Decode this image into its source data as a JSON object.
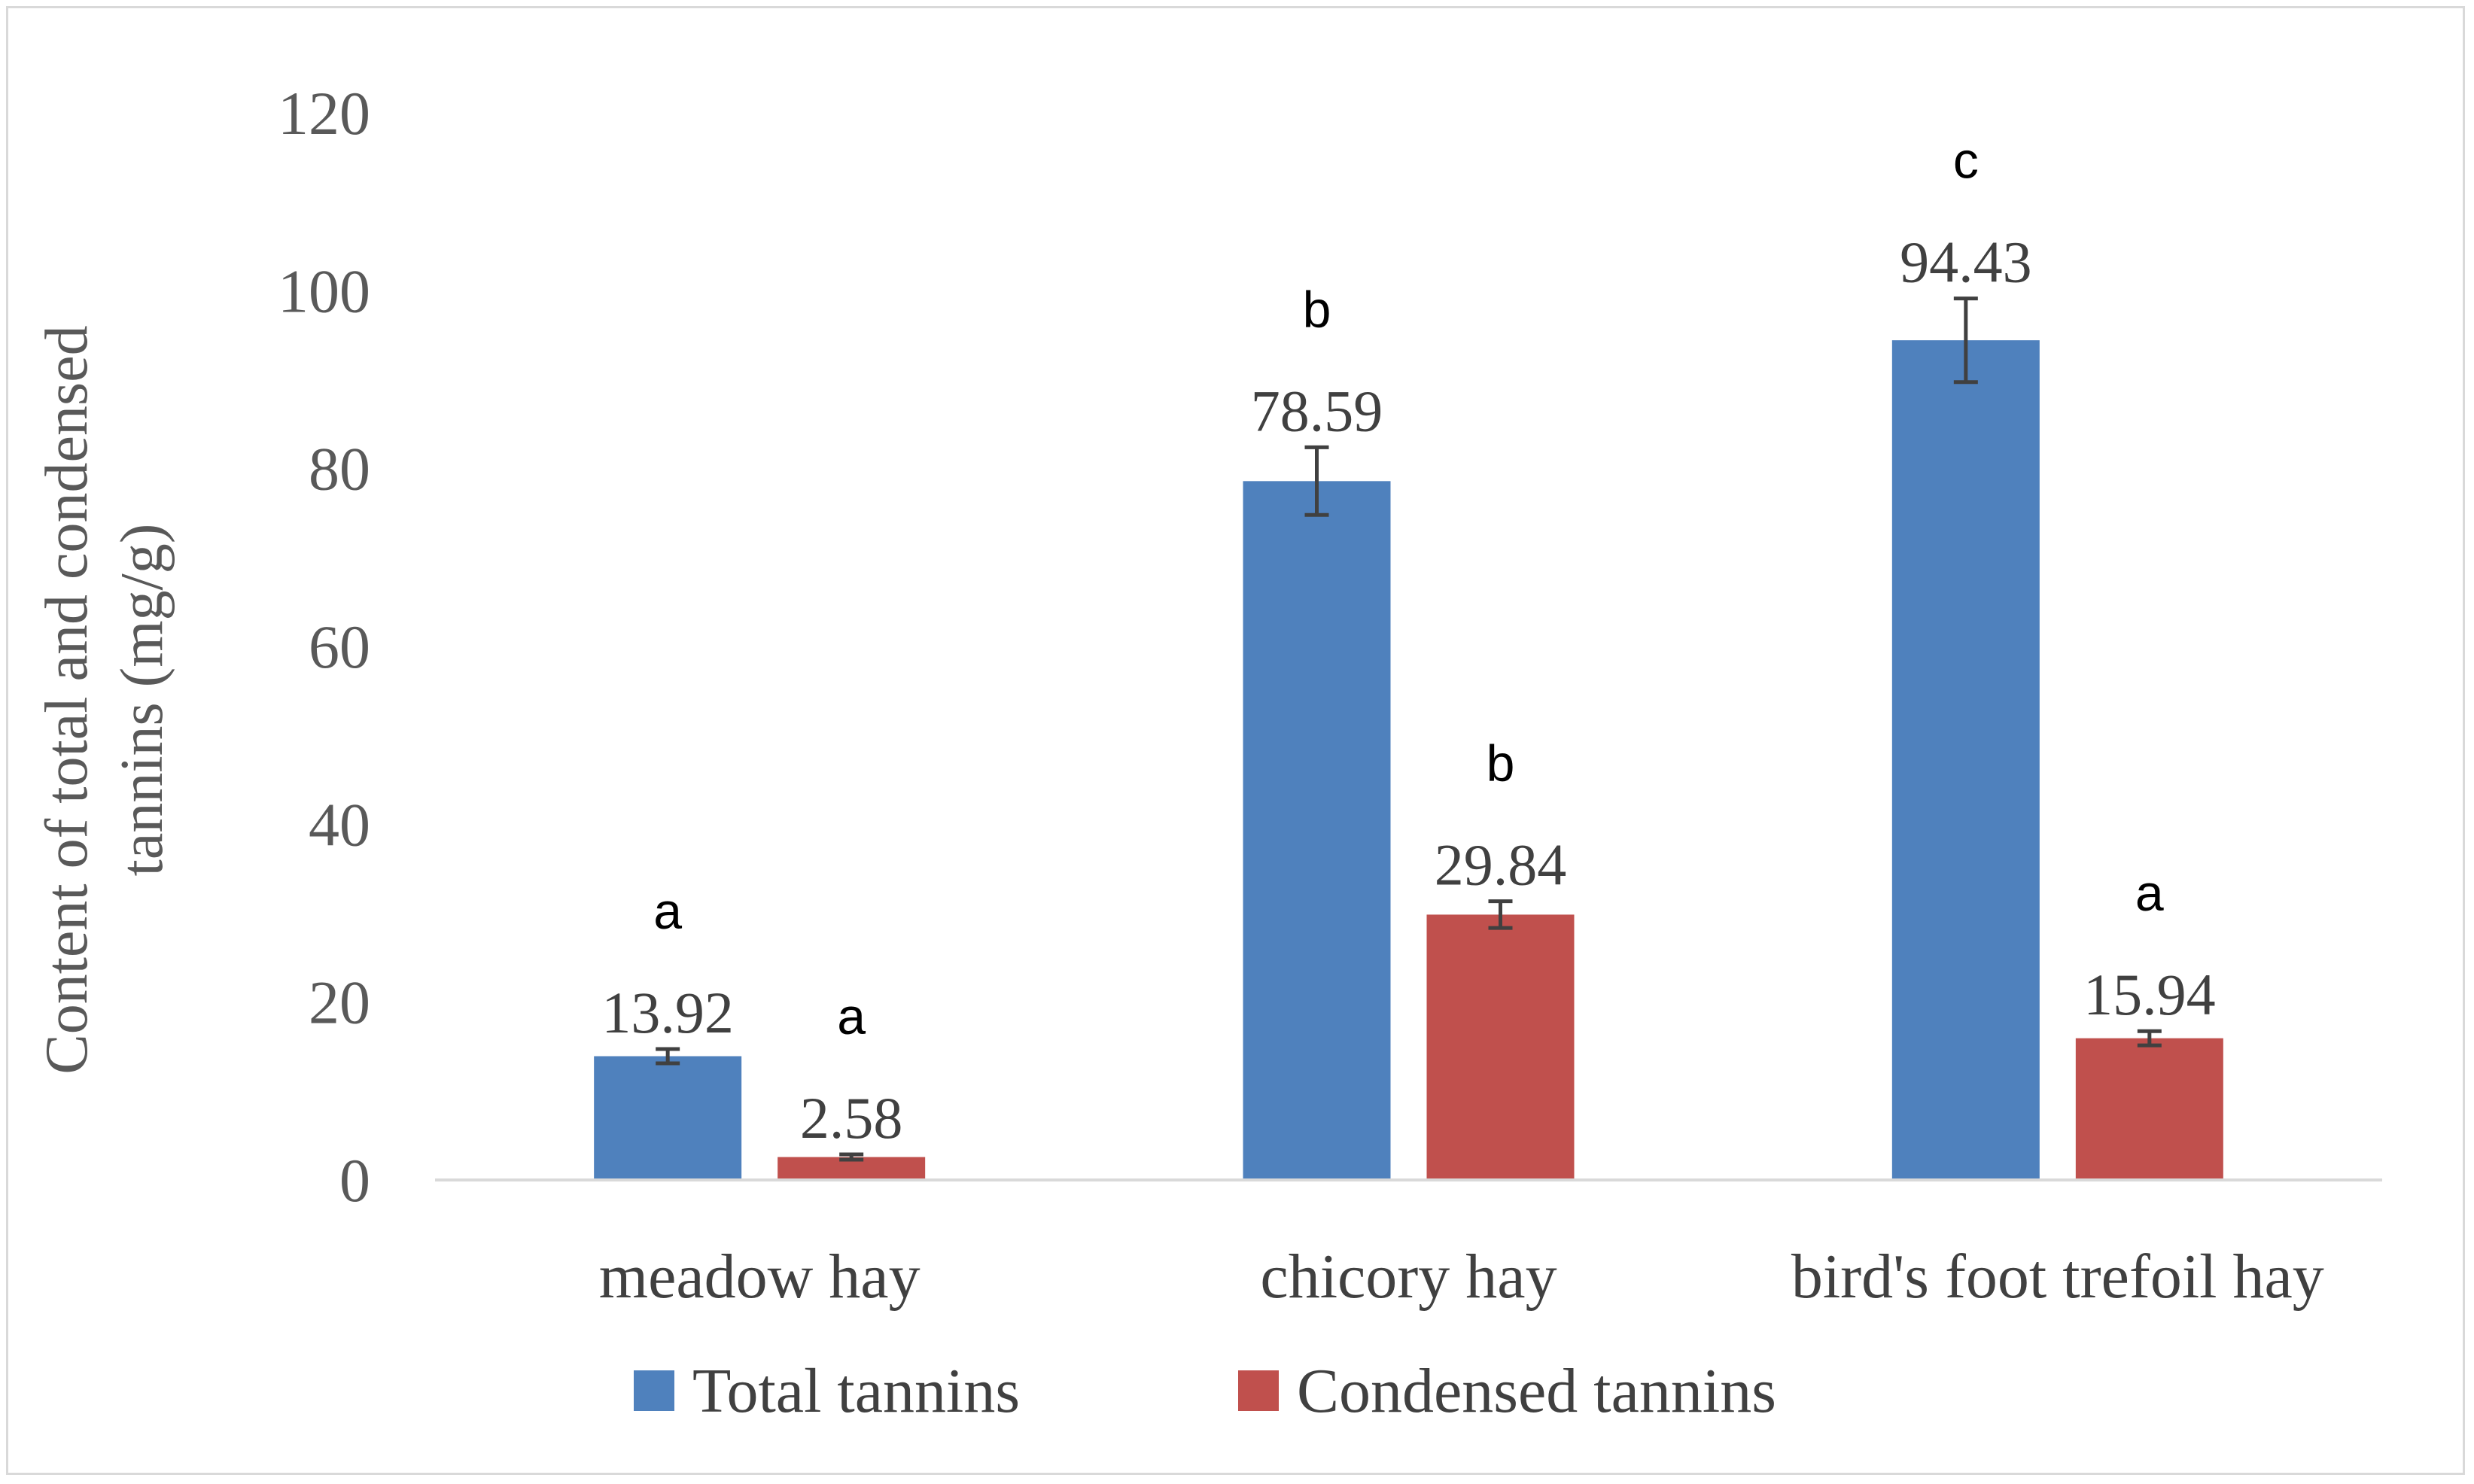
{
  "chart_data": {
    "type": "bar",
    "categories": [
      "meadow hay",
      "chicory hay",
      "bird's foot trefoil hay"
    ],
    "series": [
      {
        "name": "Total tannins",
        "color": "#4f81bd",
        "values": [
          13.92,
          78.59,
          94.43
        ],
        "errors": [
          0.8,
          3.8,
          4.7
        ],
        "value_labels": [
          "13.92",
          "78.59",
          "94.43"
        ],
        "significance": [
          "a",
          "b",
          "c"
        ]
      },
      {
        "name": "Condensed tannins",
        "color": "#c0504d",
        "values": [
          2.58,
          29.84,
          15.94
        ],
        "errors": [
          0.3,
          1.5,
          0.8
        ],
        "value_labels": [
          "2.58",
          "29.84",
          "15.94"
        ],
        "significance": [
          "a",
          "b",
          "a"
        ]
      }
    ],
    "ylabel_lines": [
      "Content of total and condensed",
      "tannins (mg/g)"
    ],
    "ylim": [
      0,
      120
    ],
    "yticks": [
      0,
      20,
      40,
      60,
      80,
      100,
      120
    ],
    "ytick_labels": [
      "0",
      "20",
      "40",
      "60",
      "80",
      "100",
      "120"
    ],
    "grid": false,
    "legend_position": "bottom",
    "colors": {
      "axis": "#d9d9d9",
      "error_bar": "#404040"
    }
  }
}
